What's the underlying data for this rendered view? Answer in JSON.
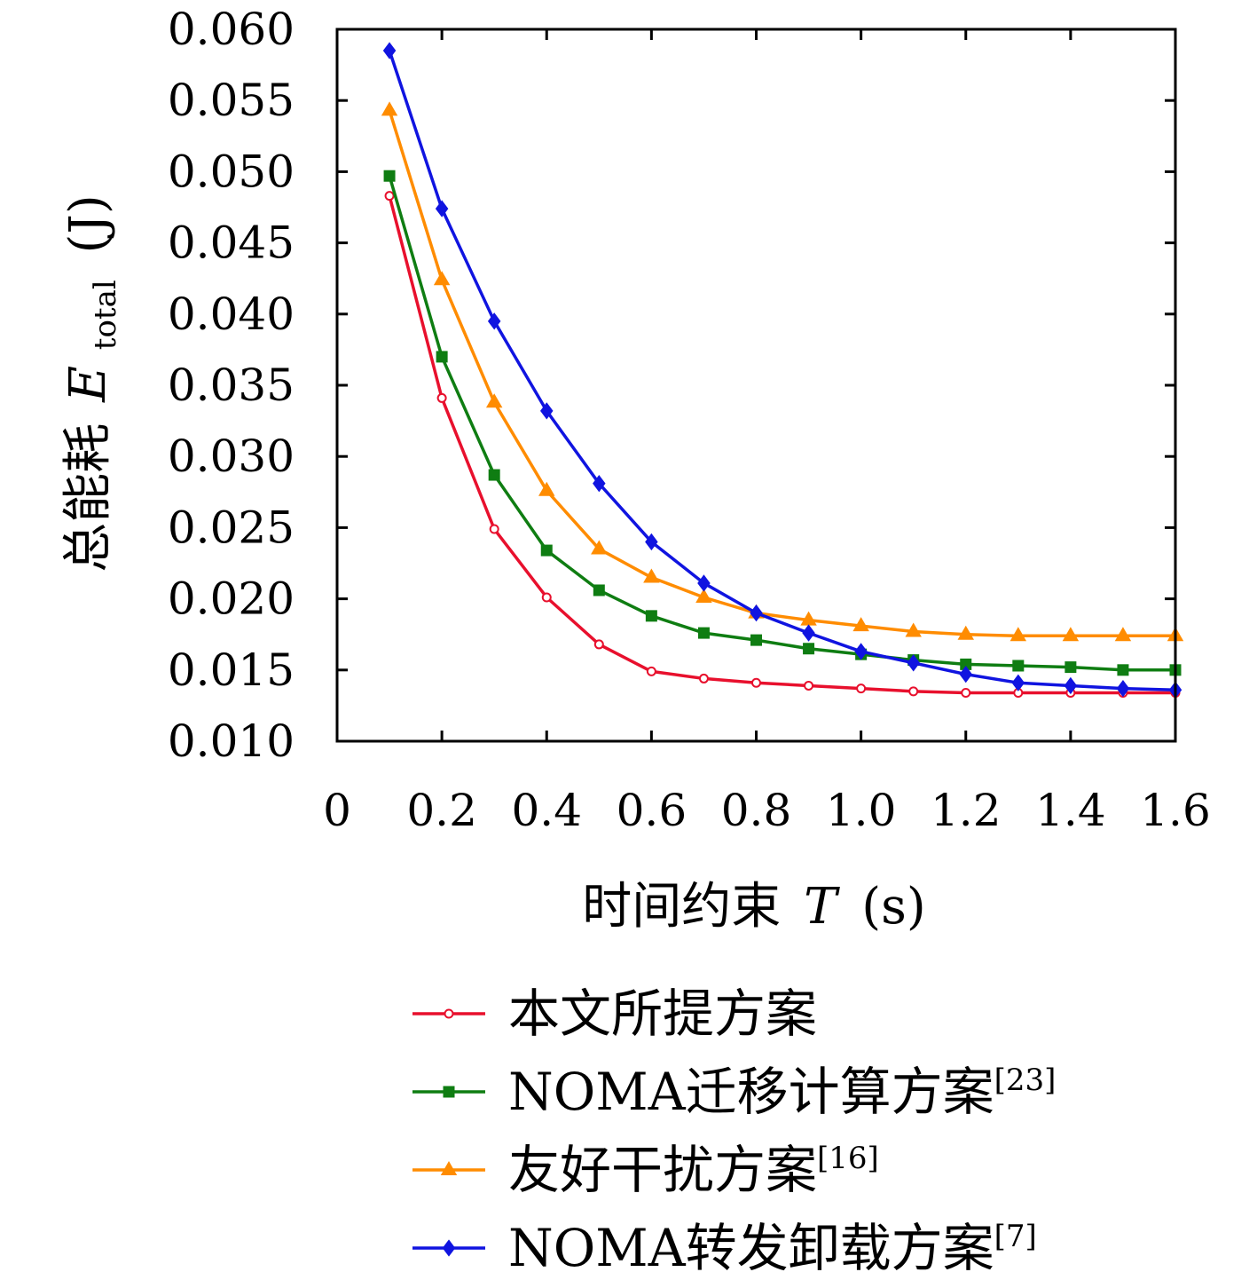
{
  "chart_data": {
    "type": "line",
    "xlabel_text": "时间约束",
    "xlabel_symbol": "T",
    "xlabel_unit": "(s)",
    "ylabel_text": "总能耗",
    "ylabel_symbol": "E",
    "ylabel_subscript": "total",
    "ylabel_unit": "(J)",
    "xlim": [
      0,
      1.6
    ],
    "ylim": [
      0.01,
      0.06
    ],
    "x_ticks": [
      0,
      0.2,
      0.4,
      0.6,
      0.8,
      1.0,
      1.2,
      1.4,
      1.6
    ],
    "x_tick_labels": [
      "0",
      "0.2",
      "0.4",
      "0.6",
      "0.8",
      "1.0",
      "1.2",
      "1.4",
      "1.6"
    ],
    "y_ticks": [
      0.01,
      0.015,
      0.02,
      0.025,
      0.03,
      0.035,
      0.04,
      0.045,
      0.05,
      0.055,
      0.06
    ],
    "y_tick_labels": [
      "0.010",
      "0.015",
      "0.020",
      "0.025",
      "0.030",
      "0.035",
      "0.040",
      "0.045",
      "0.050",
      "0.055",
      "0.060"
    ],
    "x": [
      0.1,
      0.2,
      0.3,
      0.4,
      0.5,
      0.6,
      0.7,
      0.8,
      0.9,
      1.0,
      1.1,
      1.2,
      1.3,
      1.4,
      1.5,
      1.6
    ],
    "grid": false,
    "legend_position": "bottom",
    "series": [
      {
        "name": "本文所提方案",
        "ref": "",
        "color": "#e8102d",
        "marker": "circle",
        "values": [
          0.0483,
          0.0341,
          0.0249,
          0.0201,
          0.0168,
          0.0149,
          0.0144,
          0.0141,
          0.0139,
          0.0137,
          0.0135,
          0.0134,
          0.0134,
          0.0134,
          0.0134,
          0.0134
        ]
      },
      {
        "name": "NOMA迁移计算方案",
        "ref": "[23]",
        "color": "#0f7d12",
        "marker": "square",
        "values": [
          0.0497,
          0.037,
          0.0287,
          0.0234,
          0.0206,
          0.0188,
          0.0176,
          0.0171,
          0.0165,
          0.0161,
          0.0157,
          0.0154,
          0.0153,
          0.0152,
          0.015,
          0.015
        ]
      },
      {
        "name": "友好干扰方案",
        "ref": "[16]",
        "color": "#ff8c00",
        "marker": "triangle",
        "values": [
          0.0543,
          0.0424,
          0.0338,
          0.0276,
          0.0235,
          0.0215,
          0.0201,
          0.019,
          0.0185,
          0.0181,
          0.0177,
          0.0175,
          0.0174,
          0.0174,
          0.0174,
          0.0174
        ]
      },
      {
        "name": "NOMA转发卸载方案",
        "ref": "[7]",
        "color": "#1014e0",
        "marker": "diamond",
        "values": [
          0.0585,
          0.0474,
          0.0395,
          0.0332,
          0.0281,
          0.024,
          0.0211,
          0.019,
          0.0176,
          0.0163,
          0.0155,
          0.0147,
          0.0141,
          0.0139,
          0.0137,
          0.0136
        ]
      }
    ]
  }
}
